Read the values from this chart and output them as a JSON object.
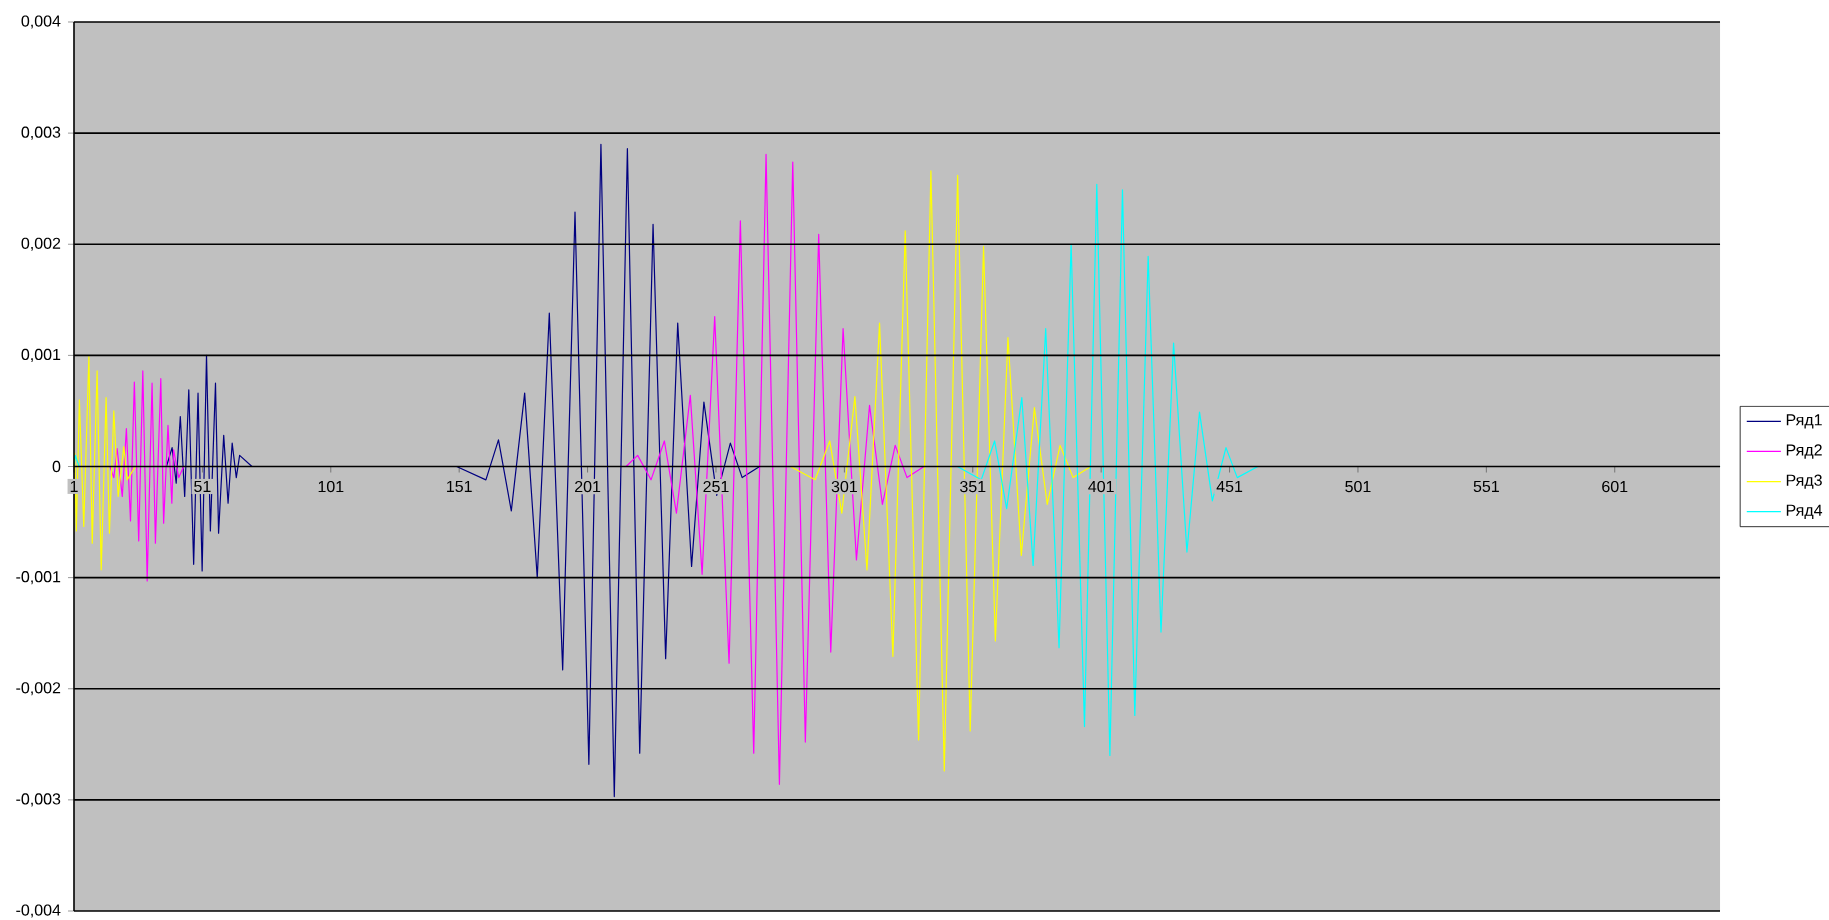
{
  "chart_data": {
    "type": "line",
    "xlim": [
      1,
      642
    ],
    "ylim": [
      -0.004,
      0.004
    ],
    "xticks": [
      1,
      51,
      101,
      151,
      201,
      251,
      301,
      351,
      401,
      451,
      501,
      551,
      601
    ],
    "yticks": [
      {
        "value": 0.004,
        "label": "0,004"
      },
      {
        "value": 0.003,
        "label": "0,003"
      },
      {
        "value": 0.002,
        "label": "0,002"
      },
      {
        "value": 0.001,
        "label": "0,001"
      },
      {
        "value": 0,
        "label": "0"
      },
      {
        "value": -0.001,
        "label": "-0,001"
      },
      {
        "value": -0.002,
        "label": "-0,002"
      },
      {
        "value": -0.003,
        "label": "-0,003"
      },
      {
        "value": -0.004,
        "label": "-0,004"
      }
    ],
    "grid": "y",
    "legend": "right",
    "line_style": "solid",
    "series": [
      {
        "name": "Ряд1",
        "color": "#000080",
        "x": [
          1,
          37,
          39.2,
          40.8,
          42.4,
          44.1,
          45.7,
          47.6,
          49.3,
          50.9,
          52.6,
          54.1,
          56.1,
          57.3,
          59.3,
          61,
          62.6,
          64.2,
          65.5,
          70.3,
          150,
          161.4,
          166.3,
          171.3,
          176.5,
          181.4,
          186.1,
          191.3,
          196.1,
          201.5,
          206.2,
          211.4,
          216.5,
          221.3,
          226.5,
          231.4,
          236.1,
          241.5,
          246.3,
          251.3,
          256.6,
          261.2,
          268,
          360
        ],
        "values": [
          0,
          0,
          0.00017,
          -0.00015,
          0.00045,
          -0.00027,
          0.00069,
          -0.00088,
          0.00066,
          -0.00094,
          0.001,
          -0.00058,
          0.00075,
          -0.0006,
          0.00028,
          -0.00033,
          0.00021,
          -0.0001,
          0.0001,
          0,
          0,
          -0.00012,
          0.00024,
          -0.0004,
          0.00066,
          -0.001,
          0.00138,
          -0.00183,
          0.00229,
          -0.00268,
          0.0029,
          -0.00297,
          0.00286,
          -0.00258,
          0.00218,
          -0.00173,
          0.00129,
          -0.0009,
          0.00058,
          -0.00026,
          0.00021,
          -0.0001,
          0,
          0
        ]
      },
      {
        "name": "Ряд2",
        "color": "#ff00ff",
        "x": [
          1,
          15,
          16.5,
          17.8,
          19.8,
          21.4,
          23,
          24.5,
          26.2,
          27.8,
          29.5,
          31.4,
          32.7,
          34.8,
          35.9,
          37.6,
          39.1,
          39.8,
          41.8,
          43.7,
          216,
          220.5,
          225.7,
          230.9,
          235.6,
          241,
          245.6,
          250.5,
          256.1,
          260.5,
          265.7,
          270.5,
          275.7,
          280.9,
          285.8,
          291,
          295.7,
          300.5,
          305.7,
          310.8,
          315.8,
          320.8,
          325.4,
          332,
          419
        ],
        "values": [
          0,
          0,
          -0.0001,
          0.00016,
          -0.00027,
          0.00034,
          -0.00049,
          0.00076,
          -0.00067,
          0.00086,
          -0.00103,
          0.00075,
          -0.00069,
          0.00079,
          -0.00051,
          0.00037,
          -0.00033,
          0.00015,
          -0.0001,
          0,
          0,
          0.0001,
          -0.00012,
          0.00023,
          -0.00042,
          0.00064,
          -0.00097,
          0.00135,
          -0.00177,
          0.00221,
          -0.00258,
          0.00281,
          -0.00286,
          0.00274,
          -0.00248,
          0.00209,
          -0.00167,
          0.00124,
          -0.00084,
          0.00055,
          -0.00034,
          0.00019,
          -0.0001,
          0,
          0
        ]
      },
      {
        "name": "Ряд3",
        "color": "#ffff00",
        "x": [
          1,
          1.3,
          1.9,
          3.1,
          4.8,
          6.8,
          8.1,
          10,
          11.6,
          13.5,
          14.8,
          16.5,
          18.2,
          20.4,
          21.7,
          24.9,
          280,
          289.6,
          295.3,
          300,
          305.1,
          309.8,
          314.7,
          319.9,
          324.7,
          329.9,
          334.7,
          339.9,
          345.1,
          350,
          355.2,
          359.8,
          364.7,
          369.9,
          375,
          380,
          385,
          390.1,
          397,
          484
        ],
        "values": [
          0,
          0.00012,
          -0.00058,
          0.0006,
          -0.00054,
          0.00099,
          -0.00069,
          0.00086,
          -0.00093,
          0.00062,
          -0.0006,
          0.0005,
          -0.00027,
          0.00018,
          -0.00012,
          0,
          0,
          -0.00012,
          0.00023,
          -0.00042,
          0.00063,
          -0.00093,
          0.00129,
          -0.00171,
          0.00212,
          -0.00246,
          0.00266,
          -0.00274,
          0.00262,
          -0.00238,
          0.00198,
          -0.00157,
          0.00116,
          -0.0008,
          0.00053,
          -0.00034,
          0.00019,
          -0.0001,
          0,
          0
        ]
      },
      {
        "name": "Ряд4",
        "color": "#00ffff",
        "x": [
          1,
          1.5,
          3,
          345,
          354.3,
          359.5,
          364.2,
          370.1,
          374.5,
          379.4,
          384.6,
          389.3,
          394.5,
          399.3,
          404.4,
          409.3,
          414.1,
          419.3,
          424.3,
          429.2,
          434.4,
          439.3,
          444.3,
          449.6,
          454,
          462,
          642
        ],
        "values": [
          0,
          0.0001,
          0,
          0,
          -0.00012,
          0.00023,
          -0.00038,
          0.00062,
          -0.00089,
          0.00124,
          -0.00163,
          0.002,
          -0.00234,
          0.00254,
          -0.0026,
          0.00249,
          -0.00224,
          0.00189,
          -0.00149,
          0.00111,
          -0.00077,
          0.00049,
          -0.00031,
          0.00017,
          -0.0001,
          0,
          0
        ]
      }
    ]
  }
}
